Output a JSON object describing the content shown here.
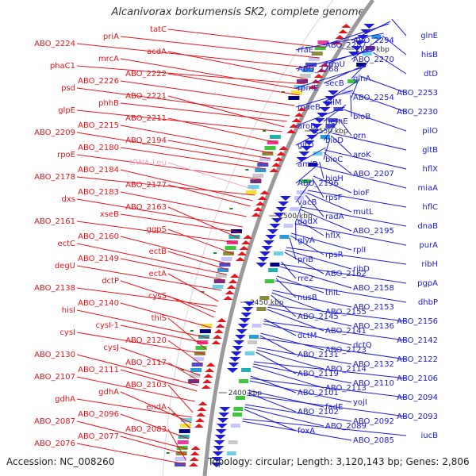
{
  "title": "Alcanivorax borkumensis SK2, complete genome",
  "accession": "Accession: NC_008260",
  "topology": "Topology: circular; Length: 3,120,143 bp; Genes: 2,806",
  "colors": {
    "left": "#e8141b",
    "right": "#1b1bd9",
    "trna": "#f2a6c8",
    "backbone": "#9a9a9a",
    "tick": "#1f8f2a"
  },
  "ticks": [
    "2600 kbp",
    "2550 kbp",
    "2500 kbp",
    "2450 kbp",
    "2400 kbp"
  ],
  "left_labels": [
    "tatC",
    "priA",
    "ABO_2224",
    "acdA",
    "mrcA",
    "phaC1",
    "ABO_2222",
    "ABO_2226",
    "psd",
    "ABO_2221",
    "phhB",
    "glpE",
    "ABO_2211",
    "ABO_2215",
    "ABO_2209",
    "ABO_2194",
    "ABO_2180",
    "rpoE",
    "tRNA-Leu",
    "ABO_2184",
    "ABO_2178",
    "ABO_2177",
    "ABO_2183",
    "dxs",
    "ABO_2163",
    "xseB",
    "ABO_2161",
    "ggpS",
    "ABO_2160",
    "ectC",
    "ectB",
    "ABO_2149",
    "degU",
    "ectA",
    "dctP",
    "ABO_2138",
    "cysS",
    "ABO_2140",
    "hisI",
    "thiS",
    "cysI-1",
    "cysI",
    "ABO_2120",
    "cysJ",
    "ABO_2130",
    "ABO_2117",
    "ABO_2111",
    "ABO_2107",
    "ABO_2103",
    "gdhA",
    "gdhA",
    "endA",
    "ABO_2096",
    "ABO_2087",
    "ABO_2083",
    "ABO_2077",
    "ABO_2076"
  ],
  "right_labels": [
    "glnE",
    "ABO_2294",
    "ABO_2287",
    "rfaE",
    "hisB",
    "ABO_2270",
    "trmU",
    "ABO_2268",
    "dtD",
    "glnA",
    "secB",
    "rpmE",
    "ABO_2253",
    "ABO_2254",
    "pilM",
    "maeB",
    "ABO_2230",
    "bioB",
    "hemE",
    "aroB",
    "pilO",
    "orn",
    "bioD",
    "gltD",
    "gltB",
    "aroK",
    "bioC",
    "amiB",
    "hflX",
    "ABO_2207",
    "bioH",
    "ABO_2196",
    "miaA",
    "bioF",
    "rpsF",
    "vacB",
    "hflC",
    "mutL",
    "radA",
    "dadX",
    "dnaB",
    "ABO_2195",
    "hflX",
    "glyA",
    "purA",
    "rplI",
    "rpsR",
    "priB",
    "ribH",
    "ribD",
    "ABO_2162",
    "rre2",
    "pgpA",
    "ABO_2158",
    "thiL",
    "nusB",
    "dhbP",
    "ABO_2153",
    "ABO_2155",
    "ABO_2145",
    "ABO_2156",
    "ABO_2136",
    "ABO_2141",
    "dctM",
    "ABO_2142",
    "dctQ",
    "ABO_2123",
    "ABO_2131",
    "ABO_2122",
    "ABO_2132",
    "ABO_2114",
    "ABO_2119",
    "ABO_2106",
    "ABO_2110",
    "ABO_2113",
    "ABO_2101",
    "ABO_2094",
    "yojI",
    "fadE",
    "ABO_2102",
    "ABO_2093",
    "ABO_2092",
    "ABO_2089",
    "foxA",
    "iucB",
    "ABO_2085"
  ]
}
